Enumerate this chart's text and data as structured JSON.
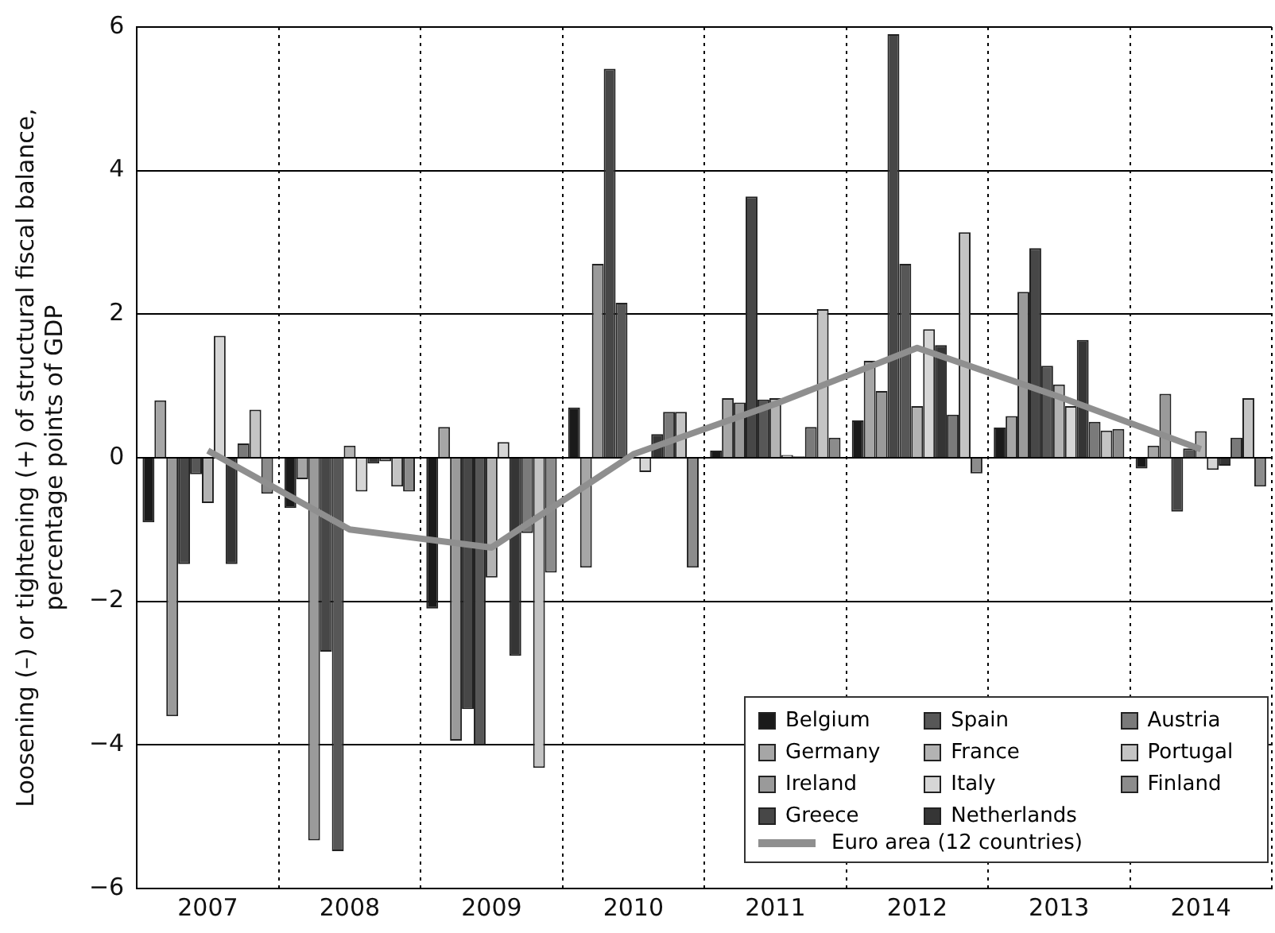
{
  "chart_data": {
    "type": "bar",
    "ylabel": "Loosening (–) or tightening (+) of structural fiscal balance,\npercentage points of GDP",
    "categories": [
      "2007",
      "2008",
      "2009",
      "2010",
      "2011",
      "2012",
      "2013",
      "2014"
    ],
    "ylim": [
      -6,
      6
    ],
    "yticks": [
      {
        "value": -6,
        "label": "−6"
      },
      {
        "value": -4,
        "label": "−4"
      },
      {
        "value": -2,
        "label": "−2"
      },
      0,
      2,
      4,
      6
    ],
    "grid": true,
    "legend": "bottom right",
    "series": [
      {
        "name": "Belgium",
        "color": "#1a1a1a",
        "values": [
          -0.9,
          -0.7,
          -2.1,
          0.7,
          0.1,
          0.52,
          0.42,
          -0.15
        ]
      },
      {
        "name": "Germany",
        "color": "#a6a6a6",
        "values": [
          0.8,
          -0.3,
          0.43,
          -1.53,
          0.83,
          1.35,
          0.58,
          0.17
        ]
      },
      {
        "name": "Ireland",
        "color": "#9a9a9a",
        "values": [
          -3.6,
          -5.33,
          -3.94,
          2.7,
          0.77,
          0.93,
          2.31,
          0.89
        ]
      },
      {
        "name": "Greece",
        "color": "#474747",
        "values": [
          -1.48,
          -2.7,
          -3.5,
          5.42,
          3.64,
          5.9,
          2.92,
          -0.75
        ]
      },
      {
        "name": "Spain",
        "color": "#575757",
        "values": [
          -0.23,
          -5.48,
          -4.0,
          2.16,
          0.81,
          2.7,
          1.28,
          0.13
        ]
      },
      {
        "name": "France",
        "color": "#b3b3b3",
        "values": [
          -0.63,
          0.17,
          -1.67,
          0.0,
          0.83,
          0.72,
          1.02,
          0.37
        ]
      },
      {
        "name": "Italy",
        "color": "#d6d6d6",
        "values": [
          1.7,
          -0.47,
          0.22,
          -0.2,
          0.04,
          1.79,
          0.72,
          -0.17
        ]
      },
      {
        "name": "Netherlands",
        "color": "#353535",
        "values": [
          -1.48,
          -0.08,
          -2.76,
          0.33,
          0.02,
          1.57,
          1.64,
          -0.11
        ]
      },
      {
        "name": "Austria",
        "color": "#7a7a7a",
        "values": [
          0.2,
          -0.05,
          -1.05,
          0.64,
          0.43,
          0.6,
          0.5,
          0.28
        ]
      },
      {
        "name": "Portugal",
        "color": "#c4c4c4",
        "values": [
          0.67,
          -0.4,
          -4.32,
          0.64,
          2.07,
          3.14,
          0.38,
          0.83
        ]
      },
      {
        "name": "Finland",
        "color": "#8c8c8c",
        "values": [
          -0.5,
          -0.47,
          -1.6,
          -1.53,
          0.28,
          -0.22,
          0.4,
          -0.4
        ]
      },
      {
        "name": "Euro area (12 countries)",
        "type": "line",
        "color": "#8f8f8f",
        "marker": "none",
        "values": [
          0.1,
          -1.0,
          -1.25,
          0.05,
          0.75,
          1.53,
          0.85,
          0.12
        ]
      }
    ]
  }
}
